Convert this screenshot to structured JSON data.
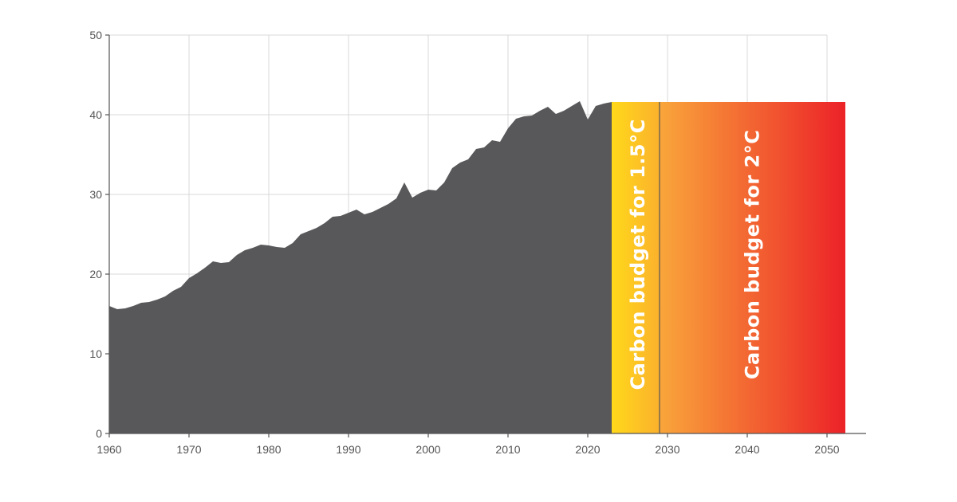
{
  "chart_data": {
    "type": "area",
    "title": "",
    "xlabel": "",
    "ylabel": "",
    "xlim": [
      1960,
      2053
    ],
    "ylim": [
      0,
      50
    ],
    "grid": true,
    "x_ticks": [
      1960,
      1970,
      1980,
      1990,
      2000,
      2010,
      2020,
      2030,
      2040,
      2050
    ],
    "y_ticks": [
      0,
      10,
      20,
      30,
      40,
      50
    ],
    "colors": {
      "emissions": "#58585a",
      "budget_1_5_start": "#ffd91a",
      "budget_1_5_end": "#fbb12d",
      "budget_2_start": "#f9a63b",
      "budget_2_end": "#ec2228",
      "divider": "#555555",
      "grid": "#d9d9d9"
    },
    "series": [
      {
        "x": [
          1960,
          1961,
          1962,
          1963,
          1964,
          1965,
          1966,
          1967,
          1968,
          1969,
          1970,
          1971,
          1972,
          1973,
          1974,
          1975,
          1976,
          1977,
          1978,
          1979,
          1980,
          1981,
          1982,
          1983,
          1984,
          1985,
          1986,
          1987,
          1988,
          1989,
          1990,
          1991,
          1992,
          1993,
          1994,
          1995,
          1996,
          1997,
          1998,
          1999,
          2000,
          2001,
          2002,
          2003,
          2004,
          2005,
          2006,
          2007,
          2008,
          2009,
          2010,
          2011,
          2012,
          2013,
          2014,
          2015,
          2016,
          2017,
          2018,
          2019,
          2020,
          2021,
          2022,
          2023
        ],
        "values": [
          16.0,
          15.6,
          15.7,
          16.0,
          16.4,
          16.5,
          16.8,
          17.2,
          17.9,
          18.4,
          19.5,
          20.1,
          20.8,
          21.6,
          21.4,
          21.5,
          22.4,
          23.0,
          23.3,
          23.7,
          23.6,
          23.4,
          23.3,
          23.9,
          25.0,
          25.4,
          25.8,
          26.4,
          27.2,
          27.3,
          27.7,
          28.1,
          27.5,
          27.8,
          28.3,
          28.8,
          29.5,
          31.5,
          29.6,
          30.2,
          30.6,
          30.5,
          31.5,
          33.3,
          34.0,
          34.4,
          35.7,
          35.9,
          36.8,
          36.6,
          38.3,
          39.5,
          39.8,
          39.9,
          40.5,
          41.0,
          40.1,
          40.5,
          41.1,
          41.7,
          39.4,
          41.1,
          41.4,
          41.6
        ]
      }
    ],
    "budgets": [
      {
        "label": "Carbon budget for 1.5°C",
        "x_start": 2023,
        "x_end": 2029,
        "value": 41.6
      },
      {
        "label": "Carbon budget for 2°C",
        "x_start": 2029,
        "x_end": 2052.3,
        "value": 41.6
      }
    ]
  }
}
